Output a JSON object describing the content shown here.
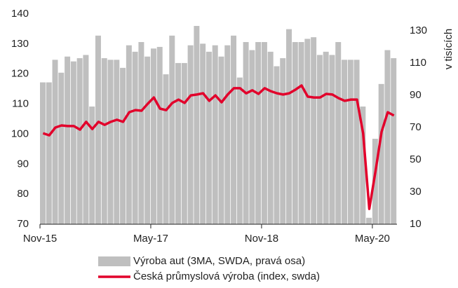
{
  "chart_data": {
    "type": "bar",
    "categories": [
      "Nov-15",
      null,
      null,
      null,
      null,
      null,
      null,
      null,
      null,
      null,
      null,
      null,
      null,
      null,
      null,
      null,
      null,
      null,
      "May-17",
      null,
      null,
      null,
      null,
      null,
      null,
      null,
      null,
      null,
      null,
      null,
      null,
      null,
      null,
      null,
      null,
      null,
      "Nov-18",
      null,
      null,
      null,
      null,
      null,
      null,
      null,
      null,
      null,
      null,
      null,
      null,
      null,
      null,
      null,
      null,
      null,
      "May-20",
      null,
      null,
      null
    ],
    "series": [
      {
        "name": "Výroba aut (3MA, SWDA, pravá osa)",
        "type": "bar",
        "axis": "y2",
        "color": "#bfbfbf",
        "values": [
          98,
          98,
          112,
          104,
          114,
          111,
          113,
          115,
          83,
          127,
          113,
          112,
          112,
          107,
          121,
          117,
          123,
          114,
          119,
          120,
          103,
          127,
          110,
          110,
          121,
          133,
          122,
          117,
          121,
          114,
          121,
          127,
          101,
          123,
          118,
          123,
          123,
          117,
          108,
          113,
          131,
          123,
          123,
          125,
          126,
          115,
          117,
          115,
          123,
          112,
          112,
          112,
          83,
          14,
          63,
          97,
          118,
          113
        ]
      },
      {
        "name": "Česká průmyslová výroba (index, swda)",
        "type": "line",
        "color": "#e2002b",
        "values": [
          100.3,
          99.6,
          102.2,
          102.9,
          102.7,
          102.7,
          101.5,
          104.1,
          101.7,
          104.1,
          103.1,
          104.1,
          104.8,
          104.1,
          107.3,
          108,
          107.8,
          110.1,
          112.2,
          108.5,
          108,
          110.4,
          111.5,
          110.4,
          112.9,
          113.2,
          113.6,
          111.1,
          112.9,
          110.6,
          113.2,
          115.3,
          115.3,
          113.6,
          114.6,
          113.4,
          115.3,
          114.3,
          113.6,
          113.2,
          113.6,
          114.8,
          116.2,
          112.5,
          112.2,
          112.2,
          113.4,
          113.2,
          112,
          111.1,
          111.5,
          111.5,
          100.3,
          75.1,
          87.5,
          100.8,
          107.3,
          106.2
        ]
      }
    ],
    "ylim": [
      70,
      140
    ],
    "yticks": [
      70,
      80,
      90,
      100,
      110,
      120,
      130,
      140
    ],
    "y2lim": [
      10,
      140.4
    ],
    "y2ticks": [
      10,
      30,
      50,
      70,
      90,
      110,
      130
    ],
    "y2label": "v tisících"
  }
}
